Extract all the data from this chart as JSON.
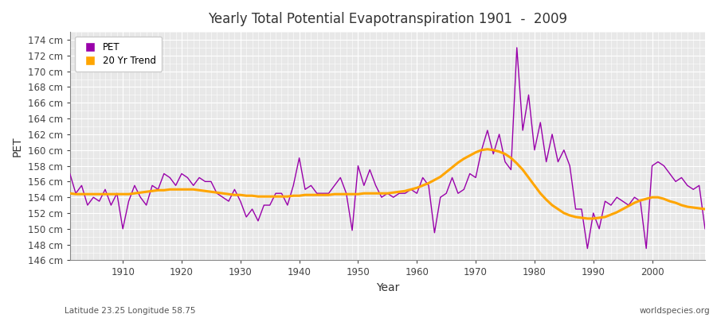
{
  "title": "Yearly Total Potential Evapotranspiration 1901  -  2009",
  "xlabel": "Year",
  "ylabel": "PET",
  "lat_lon_label": "Latitude 23.25 Longitude 58.75",
  "source_label": "worldspecies.org",
  "pet_color": "#9900aa",
  "trend_color": "#ffa500",
  "fig_bg_color": "#ffffff",
  "plot_bg_color": "#e8e8e8",
  "ylim": [
    146,
    175
  ],
  "xlim": [
    1901,
    2009
  ],
  "years": [
    1901,
    1902,
    1903,
    1904,
    1905,
    1906,
    1907,
    1908,
    1909,
    1910,
    1911,
    1912,
    1913,
    1914,
    1915,
    1916,
    1917,
    1918,
    1919,
    1920,
    1921,
    1922,
    1923,
    1924,
    1925,
    1926,
    1927,
    1928,
    1929,
    1930,
    1931,
    1932,
    1933,
    1934,
    1935,
    1936,
    1937,
    1938,
    1939,
    1940,
    1941,
    1942,
    1943,
    1944,
    1945,
    1946,
    1947,
    1948,
    1949,
    1950,
    1951,
    1952,
    1953,
    1954,
    1955,
    1956,
    1957,
    1958,
    1959,
    1960,
    1961,
    1962,
    1963,
    1964,
    1965,
    1966,
    1967,
    1968,
    1969,
    1970,
    1971,
    1972,
    1973,
    1974,
    1975,
    1976,
    1977,
    1978,
    1979,
    1980,
    1981,
    1982,
    1983,
    1984,
    1985,
    1986,
    1987,
    1988,
    1989,
    1990,
    1991,
    1992,
    1993,
    1994,
    1995,
    1996,
    1997,
    1998,
    1999,
    2000,
    2001,
    2002,
    2003,
    2004,
    2005,
    2006,
    2007,
    2008,
    2009
  ],
  "pet_values": [
    157.0,
    154.5,
    155.5,
    153.0,
    154.0,
    153.5,
    155.0,
    153.0,
    154.5,
    150.0,
    153.5,
    155.5,
    154.0,
    153.0,
    155.5,
    155.0,
    157.0,
    156.5,
    155.5,
    157.0,
    156.5,
    155.5,
    156.5,
    156.0,
    156.0,
    154.5,
    154.0,
    153.5,
    155.0,
    153.5,
    151.5,
    152.5,
    151.0,
    153.0,
    153.0,
    154.5,
    154.5,
    153.0,
    155.5,
    159.0,
    155.0,
    155.5,
    154.5,
    154.5,
    154.5,
    155.5,
    156.5,
    154.5,
    149.8,
    158.0,
    155.5,
    157.5,
    155.5,
    154.0,
    154.5,
    154.0,
    154.5,
    154.5,
    155.0,
    154.5,
    156.5,
    155.5,
    149.5,
    154.0,
    154.5,
    156.5,
    154.5,
    155.0,
    157.0,
    156.5,
    160.0,
    162.5,
    159.5,
    162.0,
    158.5,
    157.5,
    173.0,
    162.5,
    167.0,
    160.0,
    163.5,
    158.5,
    162.0,
    158.5,
    160.0,
    158.0,
    152.5,
    152.5,
    147.5,
    152.0,
    150.0,
    153.5,
    153.0,
    154.0,
    153.5,
    153.0,
    154.0,
    153.5,
    147.5,
    158.0,
    158.5,
    158.0,
    157.0,
    156.0,
    156.5,
    155.5,
    155.0,
    155.5,
    150.0
  ],
  "trend_values": [
    154.5,
    154.4,
    154.4,
    154.4,
    154.4,
    154.4,
    154.4,
    154.4,
    154.4,
    154.4,
    154.4,
    154.5,
    154.6,
    154.7,
    154.8,
    154.9,
    154.9,
    155.0,
    155.0,
    155.0,
    155.0,
    155.0,
    154.9,
    154.8,
    154.7,
    154.6,
    154.5,
    154.4,
    154.3,
    154.3,
    154.2,
    154.2,
    154.1,
    154.1,
    154.1,
    154.1,
    154.1,
    154.1,
    154.2,
    154.2,
    154.3,
    154.3,
    154.3,
    154.3,
    154.3,
    154.4,
    154.4,
    154.4,
    154.4,
    154.4,
    154.5,
    154.5,
    154.5,
    154.5,
    154.5,
    154.6,
    154.7,
    154.8,
    155.0,
    155.2,
    155.5,
    155.8,
    156.2,
    156.6,
    157.2,
    157.8,
    158.4,
    158.9,
    159.3,
    159.7,
    160.0,
    160.1,
    160.0,
    159.8,
    159.5,
    159.0,
    158.3,
    157.5,
    156.5,
    155.5,
    154.5,
    153.7,
    153.0,
    152.5,
    152.0,
    151.7,
    151.5,
    151.4,
    151.3,
    151.3,
    151.4,
    151.5,
    151.8,
    152.1,
    152.5,
    152.9,
    153.3,
    153.6,
    153.8,
    154.0,
    154.0,
    153.8,
    153.5,
    153.3,
    153.0,
    152.8,
    152.7,
    152.6,
    152.5
  ]
}
